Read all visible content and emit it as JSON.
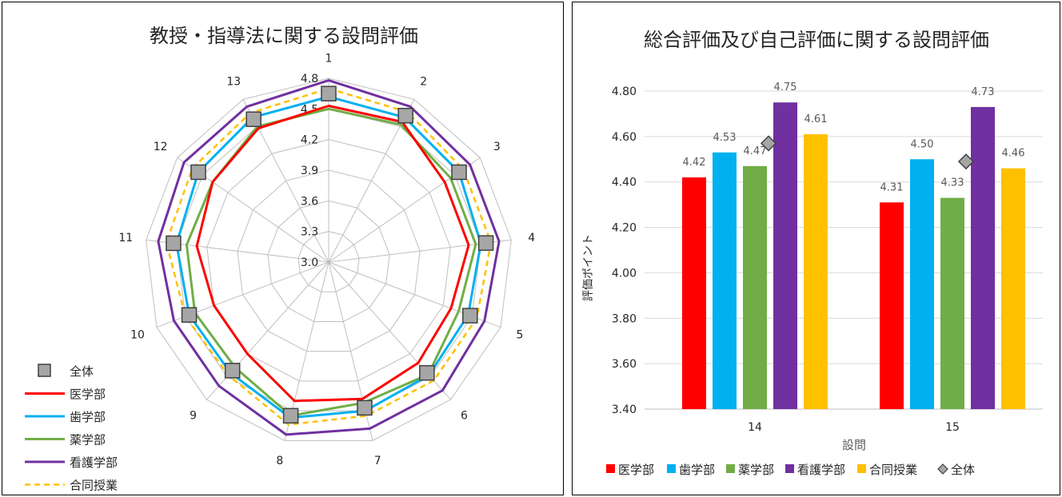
{
  "charts": {
    "radar": {
      "title": "教授・指導法に関する設問評価",
      "spokes": [
        "1",
        "2",
        "3",
        "4",
        "5",
        "6",
        "7",
        "8",
        "9",
        "10",
        "11",
        "12",
        "13"
      ],
      "rings": [
        "3.0",
        "3.3",
        "3.6",
        "3.9",
        "4.2",
        "4.5",
        "4.8"
      ],
      "legend": [
        "全体",
        "医学部",
        "歯学部",
        "薬学部",
        "看護学部",
        "合同授業"
      ]
    },
    "bars": {
      "title": "総合評価及び自己評価に関する設問評価",
      "ylabel": "評価ポイント",
      "xlabel": "設問",
      "categories": [
        "14",
        "15"
      ],
      "yticks": [
        "3.40",
        "3.60",
        "3.80",
        "4.00",
        "4.20",
        "4.40",
        "4.60",
        "4.80"
      ],
      "data_labels": [
        [
          "4.42",
          "4.53",
          "4.47",
          "4.75",
          "4.61"
        ],
        [
          "4.31",
          "4.50",
          "4.33",
          "4.73",
          "4.46"
        ]
      ],
      "legend": [
        "医学部",
        "歯学部",
        "薬学部",
        "看護学部",
        "合同授業",
        "全体"
      ]
    }
  },
  "colors": {
    "igakubu": "#ff0000",
    "shigakubu": "#00b0f0",
    "yakugakubu": "#70ad47",
    "kango": "#7030a0",
    "godo": "#ffc000",
    "zentai": "#a6a6a6"
  },
  "chart_data": [
    {
      "type": "radar",
      "title": "教授・指導法に関する設問評価",
      "categories": [
        "1",
        "2",
        "3",
        "4",
        "5",
        "6",
        "7",
        "8",
        "9",
        "10",
        "11",
        "12",
        "13"
      ],
      "range": [
        3.0,
        4.8
      ],
      "ticks": [
        3.0,
        3.3,
        3.6,
        3.9,
        4.2,
        4.5,
        4.8
      ],
      "series": [
        {
          "name": "全体",
          "style": "square-marker",
          "values": [
            4.65,
            4.62,
            4.55,
            4.55,
            4.48,
            4.45,
            4.47,
            4.55,
            4.42,
            4.46,
            4.53,
            4.55,
            4.58
          ]
        },
        {
          "name": "医学部",
          "values": [
            4.53,
            4.55,
            4.38,
            4.38,
            4.28,
            4.32,
            4.38,
            4.4,
            4.2,
            4.2,
            4.3,
            4.38,
            4.48
          ]
        },
        {
          "name": "歯学部",
          "values": [
            4.62,
            4.6,
            4.55,
            4.5,
            4.46,
            4.48,
            4.5,
            4.57,
            4.45,
            4.46,
            4.5,
            4.55,
            4.6
          ]
        },
        {
          "name": "薬学部",
          "values": [
            4.5,
            4.52,
            4.45,
            4.45,
            4.36,
            4.47,
            4.42,
            4.55,
            4.38,
            4.4,
            4.4,
            4.38,
            4.5
          ]
        },
        {
          "name": "看護学部",
          "values": [
            4.78,
            4.72,
            4.68,
            4.68,
            4.63,
            4.68,
            4.68,
            4.74,
            4.62,
            4.62,
            4.68,
            4.72,
            4.72
          ]
        },
        {
          "name": "合同授業",
          "style": "dashed",
          "values": [
            4.7,
            4.66,
            4.6,
            4.6,
            4.55,
            4.55,
            4.55,
            4.64,
            4.48,
            4.5,
            4.6,
            4.62,
            4.65
          ]
        }
      ]
    },
    {
      "type": "bar",
      "title": "総合評価及び自己評価に関する設問評価",
      "categories": [
        "14",
        "15"
      ],
      "xlabel": "設問",
      "ylabel": "評価ポイント",
      "ylim": [
        3.4,
        4.8
      ],
      "series": [
        {
          "name": "医学部",
          "values": [
            4.42,
            4.31
          ]
        },
        {
          "name": "歯学部",
          "values": [
            4.53,
            4.5
          ]
        },
        {
          "name": "薬学部",
          "values": [
            4.47,
            4.33
          ]
        },
        {
          "name": "看護学部",
          "values": [
            4.75,
            4.73
          ]
        },
        {
          "name": "合同授業",
          "values": [
            4.61,
            4.46
          ]
        },
        {
          "name": "全体",
          "style": "diamond-marker",
          "values": [
            4.57,
            4.49
          ]
        }
      ]
    }
  ]
}
